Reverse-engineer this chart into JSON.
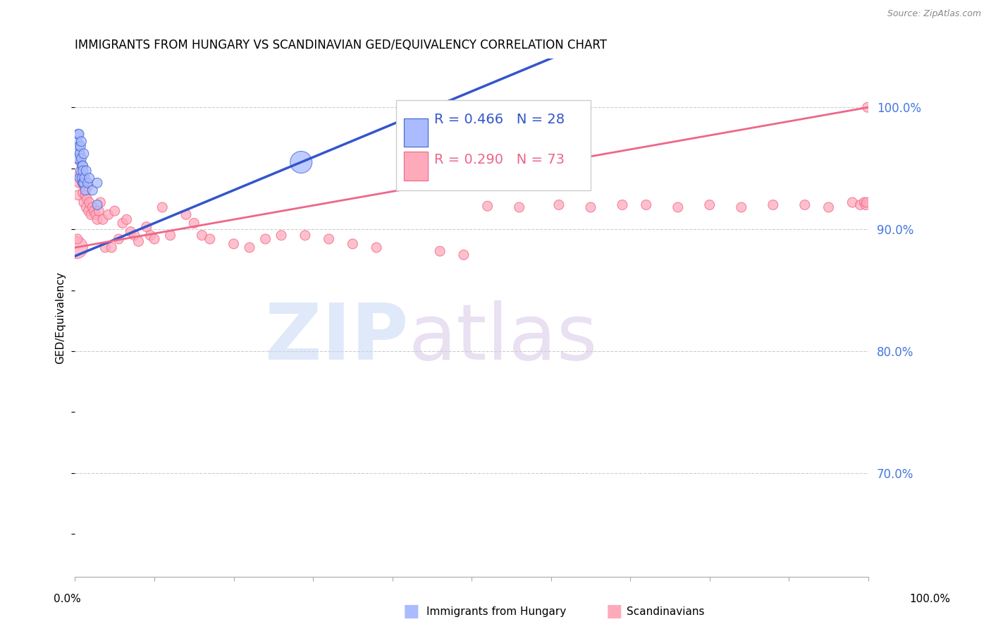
{
  "title": "IMMIGRANTS FROM HUNGARY VS SCANDINAVIAN GED/EQUIVALENCY CORRELATION CHART",
  "source": "Source: ZipAtlas.com",
  "ylabel": "GED/Equivalency",
  "ytick_labels": [
    "100.0%",
    "90.0%",
    "80.0%",
    "70.0%"
  ],
  "ytick_values": [
    1.0,
    0.9,
    0.8,
    0.7
  ],
  "xlim": [
    0.0,
    1.0
  ],
  "ylim": [
    0.615,
    1.04
  ],
  "legend_blue_r": "R = 0.466",
  "legend_blue_n": "N = 28",
  "legend_pink_r": "R = 0.290",
  "legend_pink_n": "N = 73",
  "blue_fill": "#AABBFF",
  "blue_edge": "#4466CC",
  "blue_line": "#3355CC",
  "pink_fill": "#FFAABB",
  "pink_edge": "#EE6688",
  "pink_line": "#EE6688",
  "blue_trend_start_y": 0.878,
  "blue_trend_end_y": 0.955,
  "pink_trend_start_y": 0.885,
  "pink_trend_end_y": 1.0,
  "blue_x": [
    0.002,
    0.003,
    0.004,
    0.004,
    0.005,
    0.005,
    0.006,
    0.006,
    0.007,
    0.007,
    0.008,
    0.008,
    0.009,
    0.009,
    0.01,
    0.01,
    0.01,
    0.011,
    0.011,
    0.012,
    0.013,
    0.014,
    0.016,
    0.018,
    0.022,
    0.028,
    0.028,
    0.285
  ],
  "blue_y": [
    0.958,
    0.972,
    0.978,
    0.958,
    0.968,
    0.978,
    0.942,
    0.962,
    0.948,
    0.968,
    0.958,
    0.972,
    0.942,
    0.952,
    0.938,
    0.952,
    0.948,
    0.962,
    0.938,
    0.942,
    0.932,
    0.948,
    0.938,
    0.942,
    0.932,
    0.938,
    0.92,
    0.955
  ],
  "blue_sizes": [
    100,
    100,
    100,
    100,
    100,
    100,
    100,
    100,
    100,
    100,
    100,
    100,
    100,
    100,
    100,
    100,
    100,
    100,
    100,
    100,
    100,
    100,
    100,
    100,
    100,
    100,
    100,
    500
  ],
  "pink_x": [
    0.002,
    0.003,
    0.004,
    0.005,
    0.006,
    0.006,
    0.007,
    0.008,
    0.009,
    0.01,
    0.011,
    0.012,
    0.013,
    0.014,
    0.015,
    0.016,
    0.017,
    0.018,
    0.02,
    0.022,
    0.024,
    0.026,
    0.028,
    0.03,
    0.032,
    0.035,
    0.038,
    0.042,
    0.046,
    0.05,
    0.055,
    0.06,
    0.065,
    0.07,
    0.075,
    0.08,
    0.09,
    0.095,
    0.1,
    0.11,
    0.12,
    0.14,
    0.15,
    0.16,
    0.17,
    0.2,
    0.22,
    0.24,
    0.26,
    0.29,
    0.32,
    0.35,
    0.38,
    0.46,
    0.49,
    0.52,
    0.56,
    0.61,
    0.65,
    0.69,
    0.72,
    0.76,
    0.8,
    0.84,
    0.88,
    0.92,
    0.95,
    0.98,
    0.99,
    0.995,
    0.997,
    0.998,
    0.999
  ],
  "pink_y": [
    0.885,
    0.892,
    0.928,
    0.938,
    0.945,
    0.962,
    0.955,
    0.942,
    0.938,
    0.93,
    0.922,
    0.935,
    0.928,
    0.918,
    0.925,
    0.935,
    0.915,
    0.922,
    0.912,
    0.918,
    0.915,
    0.912,
    0.908,
    0.915,
    0.922,
    0.908,
    0.885,
    0.912,
    0.885,
    0.915,
    0.892,
    0.905,
    0.908,
    0.898,
    0.895,
    0.89,
    0.902,
    0.895,
    0.892,
    0.918,
    0.895,
    0.912,
    0.905,
    0.895,
    0.892,
    0.888,
    0.885,
    0.892,
    0.895,
    0.895,
    0.892,
    0.888,
    0.885,
    0.882,
    0.879,
    0.919,
    0.918,
    0.92,
    0.918,
    0.92,
    0.92,
    0.918,
    0.92,
    0.918,
    0.92,
    0.92,
    0.918,
    0.922,
    0.92,
    0.922,
    0.92,
    0.922,
    1.0
  ],
  "pink_sizes": [
    500,
    100,
    100,
    100,
    100,
    100,
    100,
    100,
    100,
    100,
    100,
    100,
    100,
    100,
    100,
    100,
    100,
    100,
    100,
    100,
    100,
    100,
    100,
    100,
    100,
    100,
    100,
    100,
    100,
    100,
    100,
    100,
    100,
    100,
    100,
    100,
    100,
    100,
    100,
    100,
    100,
    100,
    100,
    100,
    100,
    100,
    100,
    100,
    100,
    100,
    100,
    100,
    100,
    100,
    100,
    100,
    100,
    100,
    100,
    100,
    100,
    100,
    100,
    100,
    100,
    100,
    100,
    100,
    100,
    100,
    100,
    100,
    100
  ]
}
